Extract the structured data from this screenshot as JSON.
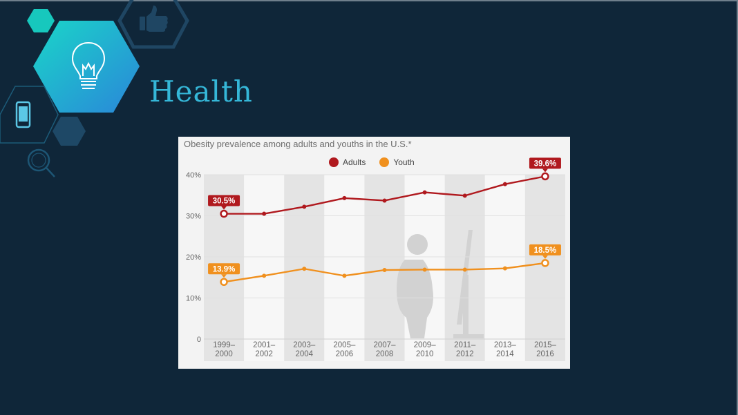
{
  "slide": {
    "title": "Health",
    "icons": [
      "lightbulb-icon",
      "thumbs-up-icon",
      "smartphone-icon",
      "magnifier-icon"
    ]
  },
  "chart_data": {
    "type": "line",
    "title": "Obesity prevalence among adults and youths in the U.S.*",
    "categories": [
      "1999–2000",
      "2001–2002",
      "2003–2004",
      "2005–2006",
      "2007–2008",
      "2009–2010",
      "2011–2012",
      "2013–2014",
      "2015–2016"
    ],
    "category_lines": [
      [
        "1999–",
        "2000"
      ],
      [
        "2001–",
        "2002"
      ],
      [
        "2003–",
        "2004"
      ],
      [
        "2005–",
        "2006"
      ],
      [
        "2007–",
        "2008"
      ],
      [
        "2009–",
        "2010"
      ],
      [
        "2011–",
        "2012"
      ],
      [
        "2013–",
        "2014"
      ],
      [
        "2015–",
        "2016"
      ]
    ],
    "series": [
      {
        "name": "Adults",
        "color": "#b0191e",
        "values": [
          30.5,
          30.5,
          32.2,
          34.3,
          33.7,
          35.7,
          34.9,
          37.7,
          39.6
        ]
      },
      {
        "name": "Youth",
        "color": "#f0901e",
        "values": [
          13.9,
          15.4,
          17.1,
          15.4,
          16.8,
          16.9,
          16.9,
          17.2,
          18.5
        ]
      }
    ],
    "data_labels": [
      {
        "series": 0,
        "index": 0,
        "text": "30.5%"
      },
      {
        "series": 0,
        "index": 8,
        "text": "39.6%"
      },
      {
        "series": 1,
        "index": 0,
        "text": "13.9%"
      },
      {
        "series": 1,
        "index": 8,
        "text": "18.5%"
      }
    ],
    "ylim": [
      0,
      40
    ],
    "yticks": [
      0,
      10,
      20,
      30,
      40
    ],
    "ytick_labels": [
      "0",
      "10%",
      "20%",
      "30%",
      "40%"
    ],
    "legend": "top-center",
    "grid": true
  }
}
